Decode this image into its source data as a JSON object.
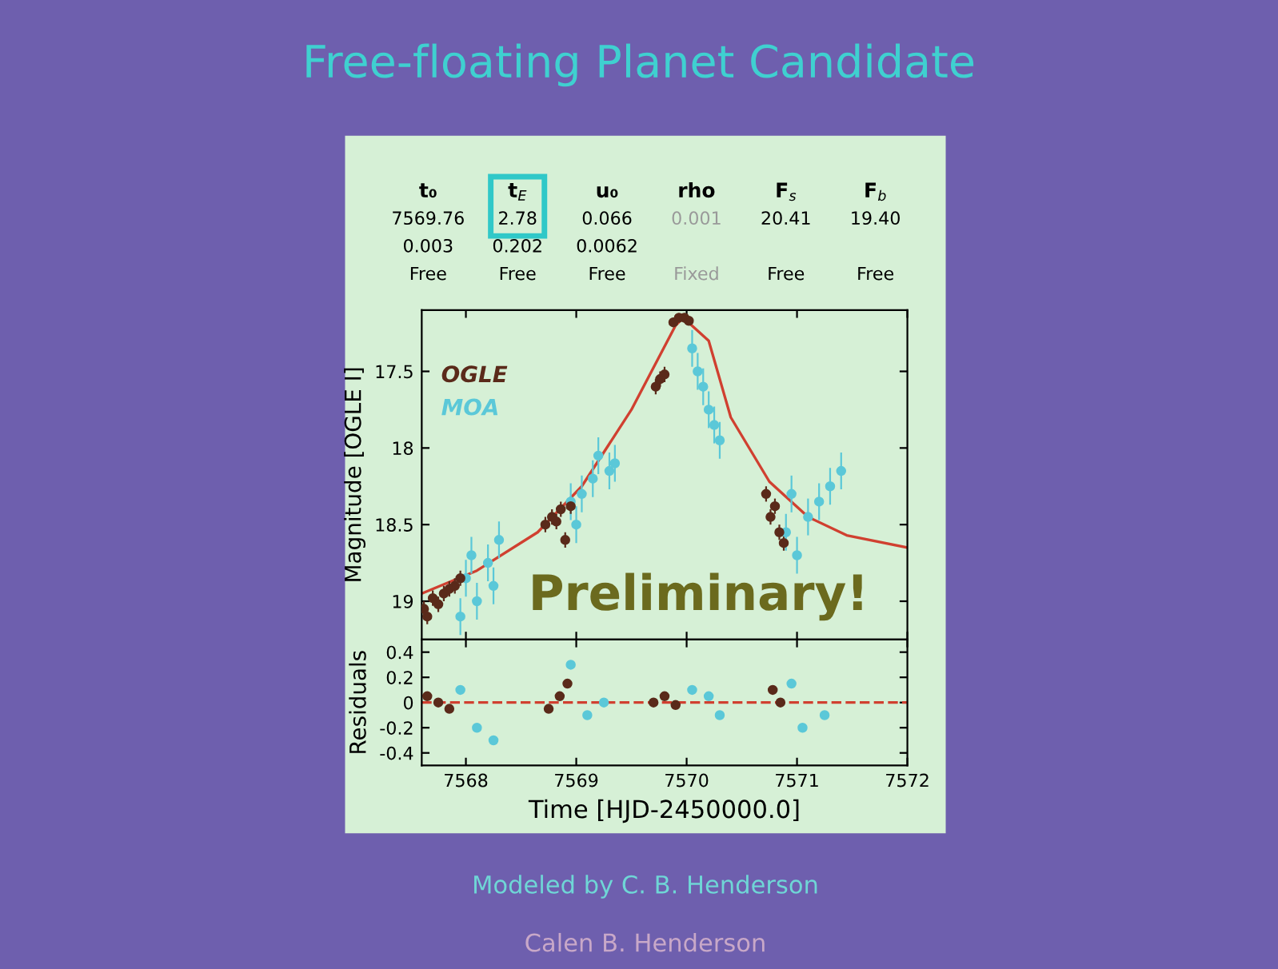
{
  "chart_data": [
    {
      "type": "other",
      "title": "Free-floating Planet Candidate",
      "categories": [
        "t₀",
        "t$_{E}$",
        "u₀",
        "rho",
        "F$_{s}$",
        "F$_{b}$"
      ],
      "cell_labels": [
        [
          "7569.76",
          "2.78",
          "0.066",
          "0.001",
          "20.41",
          "19.40"
        ],
        [
          "0.003",
          "0.202",
          "0.0062",
          null,
          null,
          null
        ],
        [
          "Free",
          "Free",
          "Free",
          "Fixed",
          "Free",
          "Free"
        ]
      ],
      "annotations": [
        "Modeled by C. B. Henderson",
        "Calen B. Henderson"
      ]
    },
    {
      "type": "scatter",
      "ylabel": "Magnitude [OGLE I]",
      "xlim": [
        7567.6,
        7572
      ],
      "ylim": [
        19.25,
        17.1
      ],
      "xticks": [
        7568,
        7569,
        7570,
        7571,
        7572
      ],
      "yticks": [
        17.5,
        18,
        18.5,
        19
      ],
      "tick_labels": "y",
      "grid": false,
      "marker": "circle",
      "annotations": [
        "Preliminary!"
      ],
      "series": [
        {
          "name": "MOA",
          "color": "#5bc8d8",
          "x": [
            7567.95,
            7568.0,
            7568.05,
            7568.1,
            7568.2,
            7568.25,
            7568.3,
            7568.95,
            7569.0,
            7569.05,
            7569.15,
            7569.2,
            7569.3,
            7569.35,
            7570.05,
            7570.1,
            7570.15,
            7570.2,
            7570.25,
            7570.3,
            7570.9,
            7570.95,
            7571.0,
            7571.1,
            7571.2,
            7571.3,
            7571.4
          ],
          "values": [
            19.1,
            18.85,
            18.7,
            19.0,
            18.75,
            18.9,
            18.6,
            18.35,
            18.5,
            18.3,
            18.2,
            18.05,
            18.15,
            18.1,
            17.35,
            17.5,
            17.6,
            17.75,
            17.85,
            17.95,
            18.55,
            18.3,
            18.7,
            18.45,
            18.35,
            18.25,
            18.15
          ],
          "errors": [
            0.12,
            0.12,
            0.12,
            0.12,
            0.12,
            0.12,
            0.12,
            0.12,
            0.12,
            0.12,
            0.12,
            0.12,
            0.12,
            0.12,
            0.12,
            0.12,
            0.12,
            0.12,
            0.12,
            0.12,
            0.12,
            0.12,
            0.12,
            0.12,
            0.12,
            0.12,
            0.12
          ]
        },
        {
          "name": "OGLE",
          "color": "#5a2a1a",
          "x": [
            7567.62,
            7567.65,
            7567.7,
            7567.75,
            7567.8,
            7567.85,
            7567.9,
            7567.95,
            7568.72,
            7568.78,
            7568.82,
            7568.86,
            7568.9,
            7568.95,
            7569.72,
            7569.76,
            7569.8,
            7569.88,
            7569.93,
            7569.98,
            7570.02,
            7570.72,
            7570.76,
            7570.8,
            7570.84,
            7570.88
          ],
          "values": [
            19.05,
            19.1,
            18.98,
            19.02,
            18.95,
            18.92,
            18.9,
            18.85,
            18.5,
            18.45,
            18.48,
            18.4,
            18.6,
            18.38,
            17.6,
            17.55,
            17.52,
            17.18,
            17.15,
            17.15,
            17.17,
            18.3,
            18.45,
            18.38,
            18.55,
            18.62
          ],
          "errors": [
            0.05,
            0.05,
            0.05,
            0.05,
            0.05,
            0.05,
            0.05,
            0.05,
            0.05,
            0.05,
            0.05,
            0.05,
            0.05,
            0.05,
            0.05,
            0.05,
            0.05,
            0.03,
            0.03,
            0.03,
            0.03,
            0.05,
            0.05,
            0.05,
            0.05,
            0.05
          ]
        },
        {
          "type": "line",
          "marker": "none",
          "color": "#d04030",
          "x": [
            7567.6,
            7568.1,
            7568.65,
            7569.05,
            7569.5,
            7569.9,
            7569.97,
            7570.2,
            7570.4,
            7570.75,
            7571.1,
            7571.45,
            7572.0
          ],
          "values": [
            18.95,
            18.8,
            18.55,
            18.25,
            17.75,
            17.2,
            17.15,
            17.3,
            17.8,
            18.22,
            18.45,
            18.57,
            18.65
          ]
        }
      ]
    },
    {
      "type": "scatter",
      "ylabel": "Residuals",
      "xlabel": "Time [HJD-2450000.0]",
      "xlim": [
        7567.6,
        7572
      ],
      "xticks": [
        7568,
        7569,
        7570,
        7571,
        7572
      ],
      "ylim": [
        -0.5,
        0.5
      ],
      "yticks": [
        -0.4,
        -0.2,
        0,
        0.2,
        0.4
      ],
      "grid": false,
      "marker": "circle",
      "ref_lines": [
        {
          "axis": "y",
          "value": 0,
          "color": "#d04030",
          "line_style": "dashed"
        }
      ],
      "series": [
        {
          "color": "#5bc8d8",
          "x": [
            7567.95,
            7568.1,
            7568.25,
            7568.95,
            7569.1,
            7569.25,
            7570.05,
            7570.2,
            7570.3,
            7570.95,
            7571.05,
            7571.25
          ],
          "values": [
            0.1,
            -0.2,
            -0.3,
            0.3,
            -0.1,
            0.0,
            0.1,
            0.05,
            -0.1,
            0.15,
            -0.2,
            -0.1
          ]
        },
        {
          "color": "#5a2a1a",
          "x": [
            7567.65,
            7567.75,
            7567.85,
            7568.75,
            7568.85,
            7568.92,
            7569.7,
            7569.8,
            7569.9,
            7570.78,
            7570.85
          ],
          "values": [
            0.05,
            0.0,
            -0.05,
            -0.05,
            0.05,
            0.15,
            0.0,
            0.05,
            -0.02,
            0.1,
            0.0
          ]
        }
      ]
    }
  ]
}
